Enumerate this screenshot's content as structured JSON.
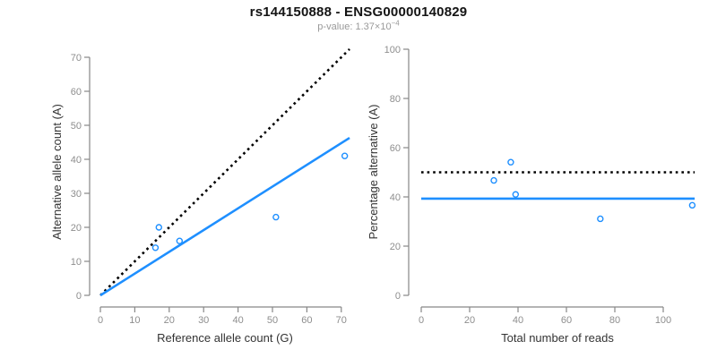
{
  "header": {
    "title": "rs144150888 - ENSG00000140829",
    "subtitle_full": "p-value: 1.37×10⁻⁴",
    "subtitle_parts": {
      "prefix": "p-value: ",
      "mantissa": "1.37×10",
      "exponent": "−4"
    }
  },
  "colors": {
    "accent_blue": "#1E8FFF",
    "dotted_black": "#000000",
    "axis_gray": "#878787",
    "tick_label_gray": "#8E8E8E",
    "axis_title_color": "#333333",
    "title_color": "#141414",
    "subtitle_gray": "#9A9A9A",
    "background": "#FFFFFF"
  },
  "chart_data": {
    "figure_title": "rs144150888 - ENSG00000140829",
    "figure_subtitle": "p-value: 1.37×10⁻⁴",
    "charts": [
      {
        "name": "ref-vs-alt-allele-counts",
        "type": "scatter",
        "xlabel": "Reference allele count (G)",
        "ylabel": "Alternative allele count (A)",
        "xlim": [
          0,
          72.5
        ],
        "ylim": [
          0,
          72.5
        ],
        "x_ticks": [
          0,
          10,
          20,
          30,
          40,
          50,
          60,
          70
        ],
        "y_ticks": [
          0,
          10,
          20,
          30,
          40,
          50,
          60,
          70
        ],
        "grid": false,
        "legend": null,
        "marker": "open-circle",
        "points": [
          {
            "x": 17,
            "y": 20
          },
          {
            "x": 16,
            "y": 14
          },
          {
            "x": 23,
            "y": 16
          },
          {
            "x": 51,
            "y": 23
          },
          {
            "x": 71,
            "y": 41
          }
        ],
        "lines": [
          {
            "name": "identity-line",
            "style": "dotted",
            "color": "#000000",
            "x1": 0,
            "y1": 0,
            "x2": 72.4,
            "y2": 72.4
          },
          {
            "name": "regression-line",
            "style": "solid",
            "color": "#1E8FFF",
            "x1": 0,
            "y1": 0,
            "x2": 72.4,
            "y2": 46.3
          }
        ]
      },
      {
        "name": "percentage-vs-total-reads",
        "type": "scatter",
        "xlabel": "Total number of reads",
        "ylabel": "Percentage alternative (A)",
        "xlim": [
          0,
          113.5
        ],
        "ylim": [
          0,
          100
        ],
        "x_ticks": [
          0,
          20,
          40,
          60,
          80,
          100
        ],
        "y_ticks": [
          0,
          20,
          40,
          60,
          80,
          100
        ],
        "grid": false,
        "legend": null,
        "marker": "open-circle",
        "points": [
          {
            "x": 37,
            "y": 54.1
          },
          {
            "x": 30,
            "y": 46.7
          },
          {
            "x": 39,
            "y": 41.0
          },
          {
            "x": 74,
            "y": 31.1
          },
          {
            "x": 112,
            "y": 36.6
          }
        ],
        "lines": [
          {
            "name": "expected-50-percent-line",
            "style": "dotted",
            "color": "#000000",
            "x1": 0,
            "y1": 50,
            "x2": 113,
            "y2": 50
          },
          {
            "name": "observed-percentage-line",
            "style": "solid",
            "color": "#1E8FFF",
            "x1": 0,
            "y1": 39.3,
            "x2": 113,
            "y2": 39.3
          }
        ]
      }
    ]
  }
}
